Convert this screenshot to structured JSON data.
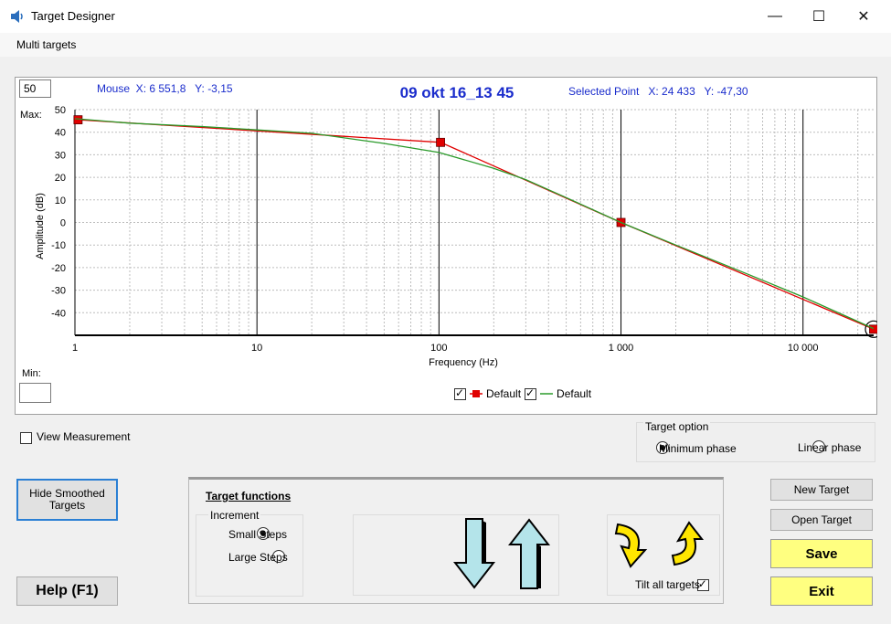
{
  "window": {
    "title": "Target Designer",
    "icon": "speaker-icon"
  },
  "menu": {
    "items": [
      "Multi targets"
    ]
  },
  "chart_header": {
    "max_value": "50",
    "max_label": "Max:",
    "min_label": "Min:",
    "min_value": "",
    "mouse_readout": "Mouse  X: 6 551,8   Y: -3,15",
    "title": "09 okt 16_13 45",
    "selected_readout": "Selected Point   X: 24 433   Y: -47,30"
  },
  "chart_data": {
    "type": "line",
    "xlabel": "Frequency (Hz)",
    "ylabel": "Amplitude (dB)",
    "xscale": "log",
    "xlim": [
      1,
      24433
    ],
    "ylim": [
      -50,
      50
    ],
    "xticks": [
      1,
      10,
      100,
      1000,
      10000
    ],
    "xtick_labels": [
      "1",
      "10",
      "100",
      "1 000",
      "10 000"
    ],
    "yticks": [
      50,
      40,
      30,
      20,
      10,
      0,
      -10,
      -20,
      -30,
      -40
    ],
    "ytick_labels": [
      "50",
      "40",
      "30",
      "20",
      "10",
      "0",
      "-10",
      "-20",
      "-30",
      "-40"
    ],
    "grid": true,
    "legend_placement": "bottom-center",
    "series": [
      {
        "name": "Default",
        "color": "#e00000",
        "marker": "square",
        "x": [
          1.04,
          102,
          1000,
          24433
        ],
        "y": [
          45.5,
          35.5,
          0,
          -47.3
        ]
      },
      {
        "name": "Default",
        "color": "#2a9a2a",
        "marker": "none",
        "x": [
          1,
          2,
          5,
          10,
          20,
          50,
          100,
          200,
          300,
          500,
          1000,
          2000,
          5000,
          10000,
          24433
        ],
        "y": [
          46,
          44,
          42.5,
          41,
          39.5,
          35,
          31,
          24,
          19,
          11,
          0,
          -10,
          -23,
          -33,
          -47
        ]
      }
    ]
  },
  "legend": {
    "items": [
      {
        "label": "Default",
        "checked": true
      },
      {
        "label": "Default",
        "checked": true
      }
    ]
  },
  "controls": {
    "view_measurement": {
      "label": "View Measurement",
      "checked": false
    },
    "target_option": {
      "title": "Target option",
      "options": [
        {
          "label": "Minimum phase",
          "selected": true
        },
        {
          "label": "Linear phase",
          "selected": false
        }
      ]
    },
    "hide_smoothed": "Hide Smoothed Targets",
    "help": "Help (F1)",
    "target_functions": {
      "title": "Target functions",
      "increment_title": "Increment",
      "small_steps": "Small Steps",
      "large_steps": "Large Steps",
      "tilt_all": "Tilt all targets",
      "tilt_all_checked": true
    },
    "new_target": "New Target",
    "open_target": "Open Target",
    "save": "Save",
    "exit": "Exit"
  }
}
